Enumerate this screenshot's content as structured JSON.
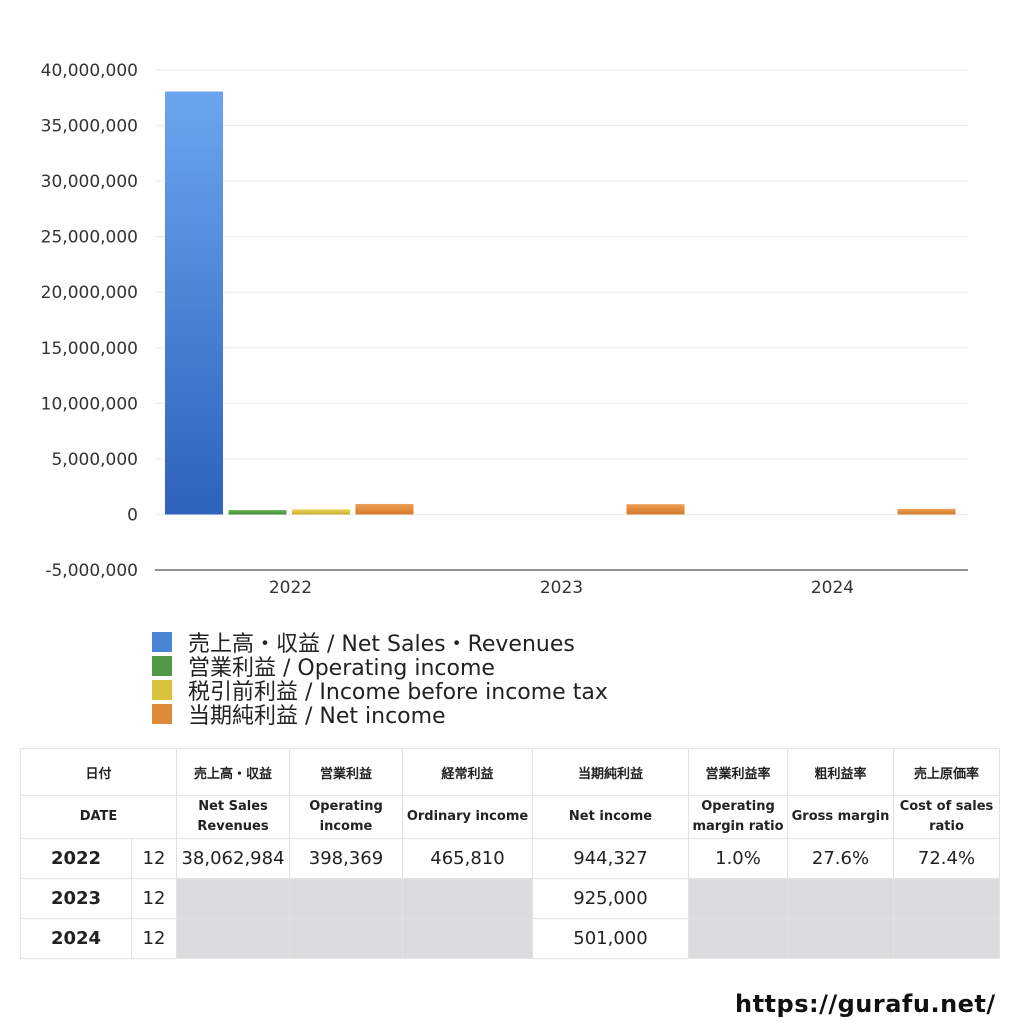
{
  "chart_data": {
    "type": "bar",
    "categories": [
      "2022",
      "2023",
      "2024"
    ],
    "series": [
      {
        "name": "売上高・収益 / Net Sales・Revenues",
        "values": [
          38062984,
          null,
          null
        ],
        "color": "#4a86d8"
      },
      {
        "name": "営業利益 / Operating income",
        "values": [
          398369,
          null,
          null
        ],
        "color": "#4f9a42"
      },
      {
        "name": "税引前利益 / Income before income tax",
        "values": [
          465810,
          null,
          null
        ],
        "color": "#d9c23e"
      },
      {
        "name": "当期純利益 / Net income",
        "values": [
          944327,
          925000,
          501000
        ],
        "color": "#df8a3a"
      }
    ],
    "ylim": [
      -5000000,
      40000000
    ],
    "yticks": [
      "40,000,000",
      "35,000,000",
      "30,000,000",
      "25,000,000",
      "20,000,000",
      "15,000,000",
      "10,000,000",
      "5,000,000",
      "0",
      "-5,000,000"
    ],
    "grid": true,
    "legend_position": "bottom-left"
  },
  "table": {
    "headers_ja": [
      "日付",
      "売上高・収益",
      "営業利益",
      "経常利益",
      "当期純利益",
      "営業利益率",
      "粗利益率",
      "売上原価率"
    ],
    "headers_en": [
      "DATE",
      "Net Sales\nRevenues",
      "Operating\nincome",
      "Ordinary income",
      "Net income",
      "Operating\nmargin ratio",
      "Gross margin",
      "Cost of sales\nratio"
    ],
    "rows": [
      {
        "year": "2022",
        "month": "12",
        "sales": "38,062,984",
        "op": "398,369",
        "ord": "465,810",
        "net": "944,327",
        "opm": "1.0%",
        "gm": "27.6%",
        "cos": "72.4%"
      },
      {
        "year": "2023",
        "month": "12",
        "sales": "",
        "op": "",
        "ord": "",
        "net": "925,000",
        "opm": "",
        "gm": "",
        "cos": ""
      },
      {
        "year": "2024",
        "month": "12",
        "sales": "",
        "op": "",
        "ord": "",
        "net": "501,000",
        "opm": "",
        "gm": "",
        "cos": ""
      }
    ]
  },
  "footer": {
    "url": "https://gurafu.net/"
  }
}
